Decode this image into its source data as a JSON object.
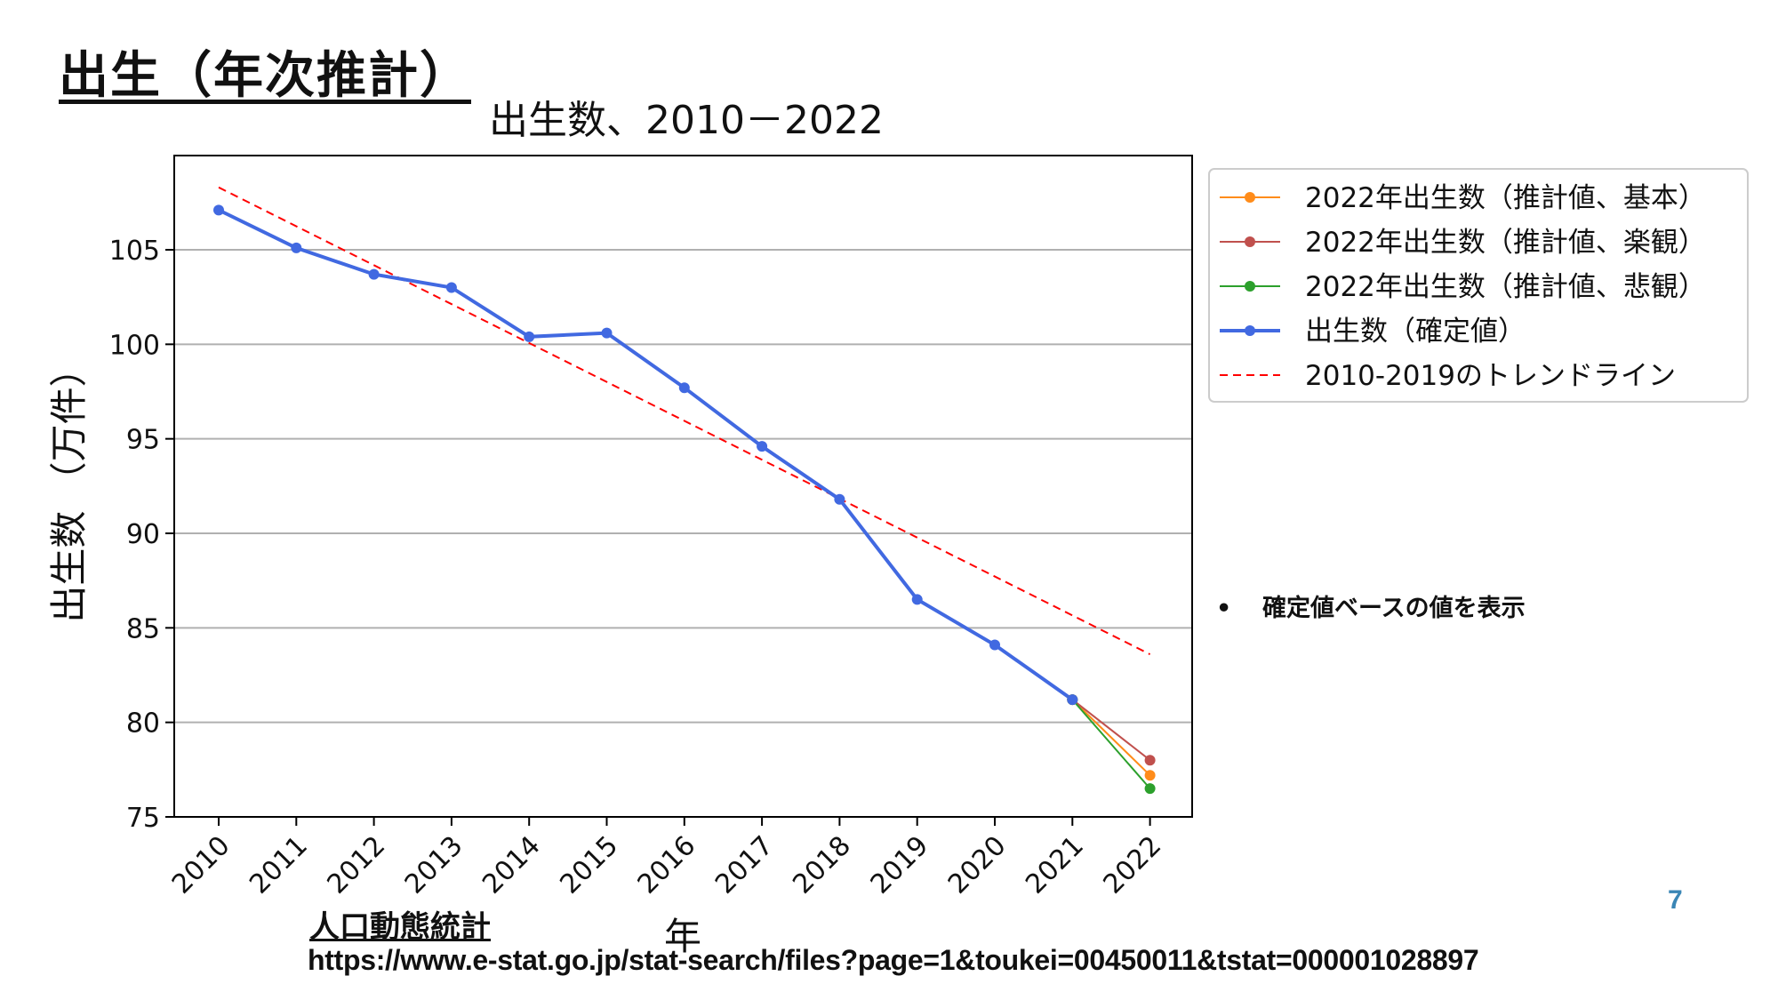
{
  "slide": {
    "title": "出生（年次推計）",
    "bullet": "確定値ベースの値を表示",
    "page_number": "7",
    "source_title": "人口動態統計",
    "source_url": "https://www.e-stat.go.jp/stat-search/files?page=1&toukei=00450011&tstat=000001028897"
  },
  "chart_data": {
    "type": "line",
    "title": "出生数、2010－2022",
    "xlabel": "年",
    "ylabel": "出生数 （万件）",
    "categories": [
      "2010",
      "2011",
      "2012",
      "2013",
      "2014",
      "2015",
      "2016",
      "2017",
      "2018",
      "2019",
      "2020",
      "2021",
      "2022"
    ],
    "ylim": [
      75,
      110
    ],
    "yticks": [
      75,
      80,
      85,
      90,
      95,
      100,
      105
    ],
    "grid": "horizontal",
    "legend_position": "outside-right-top",
    "series": [
      {
        "name": "2022年出生数（推計値、基本）",
        "color": "#ff8c1a",
        "style": "solid-marker",
        "x": [
          "2021",
          "2022"
        ],
        "values": [
          81.2,
          77.2
        ]
      },
      {
        "name": "2022年出生数（推計値、楽観）",
        "color": "#c0504d",
        "style": "solid-marker",
        "x": [
          "2021",
          "2022"
        ],
        "values": [
          81.2,
          78.0
        ]
      },
      {
        "name": "2022年出生数（推計値、悲観）",
        "color": "#2ca02c",
        "style": "solid-marker",
        "x": [
          "2021",
          "2022"
        ],
        "values": [
          81.2,
          76.5
        ]
      },
      {
        "name": "出生数（確定値）",
        "color": "#4169e1",
        "style": "solid-marker-bold",
        "x": [
          "2010",
          "2011",
          "2012",
          "2013",
          "2014",
          "2015",
          "2016",
          "2017",
          "2018",
          "2019",
          "2020",
          "2021"
        ],
        "values": [
          107.1,
          105.1,
          103.7,
          103.0,
          100.4,
          100.6,
          97.7,
          94.6,
          91.8,
          86.5,
          84.1,
          81.2
        ]
      },
      {
        "name": "2010-2019のトレンドライン",
        "color": "#ff0000",
        "style": "dashed",
        "x": [
          "2010",
          "2022"
        ],
        "values": [
          108.3,
          83.6
        ]
      }
    ]
  }
}
